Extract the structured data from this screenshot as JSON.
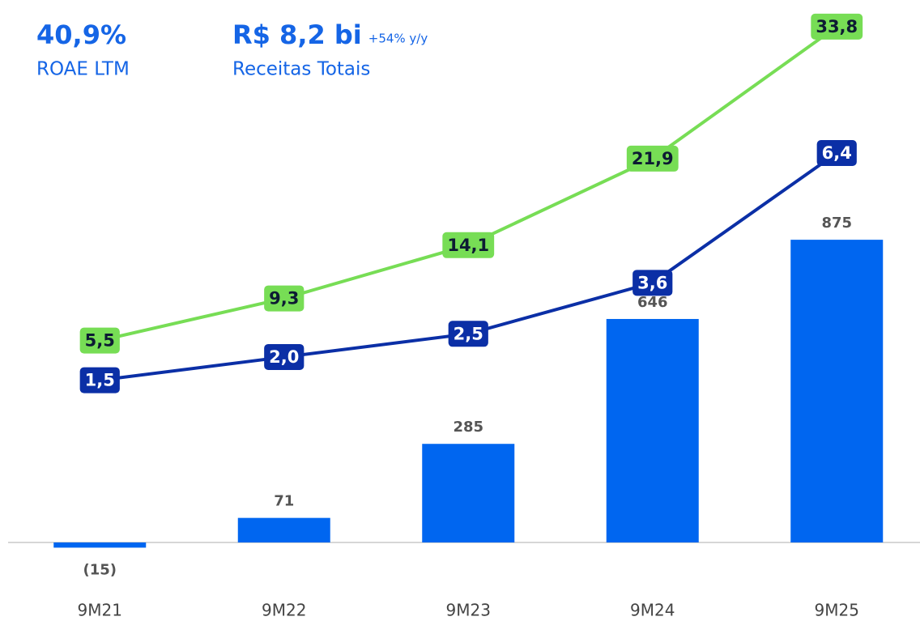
{
  "chart_data": {
    "type": "bar",
    "kpis": [
      {
        "value": "40,9%",
        "label": "ROAE LTM"
      },
      {
        "value": "R$ 8,2 bi",
        "change": "+54% y/y",
        "label": "Receitas Totais"
      }
    ],
    "categories": [
      "9M21",
      "9M22",
      "9M23",
      "9M24",
      "9M25"
    ],
    "ylim": [
      0,
      1568
    ],
    "series": [
      {
        "type": "bar",
        "color": "#0066f0",
        "values": [
          -15,
          71,
          285,
          646,
          875
        ],
        "value_labels": [
          "(15)",
          "71",
          "285",
          "646",
          "875"
        ]
      },
      {
        "type": "line",
        "color": "#77dd55",
        "label_color": "#0d1b33",
        "ylim": [
          -12.7,
          36.2
        ],
        "values": [
          5.5,
          9.3,
          14.1,
          21.9,
          33.8
        ],
        "value_labels": [
          "5,5",
          "9,3",
          "14,1",
          "21,9",
          "33,8"
        ]
      },
      {
        "type": "line",
        "color": "#0b2fa6",
        "label_color": "#ffffff",
        "ylim": [
          -2,
          9.7
        ],
        "values": [
          1.5,
          2.0,
          2.5,
          3.6,
          6.4
        ],
        "value_labels": [
          "1,5",
          "2,0",
          "2,5",
          "3,6",
          "6,4"
        ]
      }
    ]
  }
}
